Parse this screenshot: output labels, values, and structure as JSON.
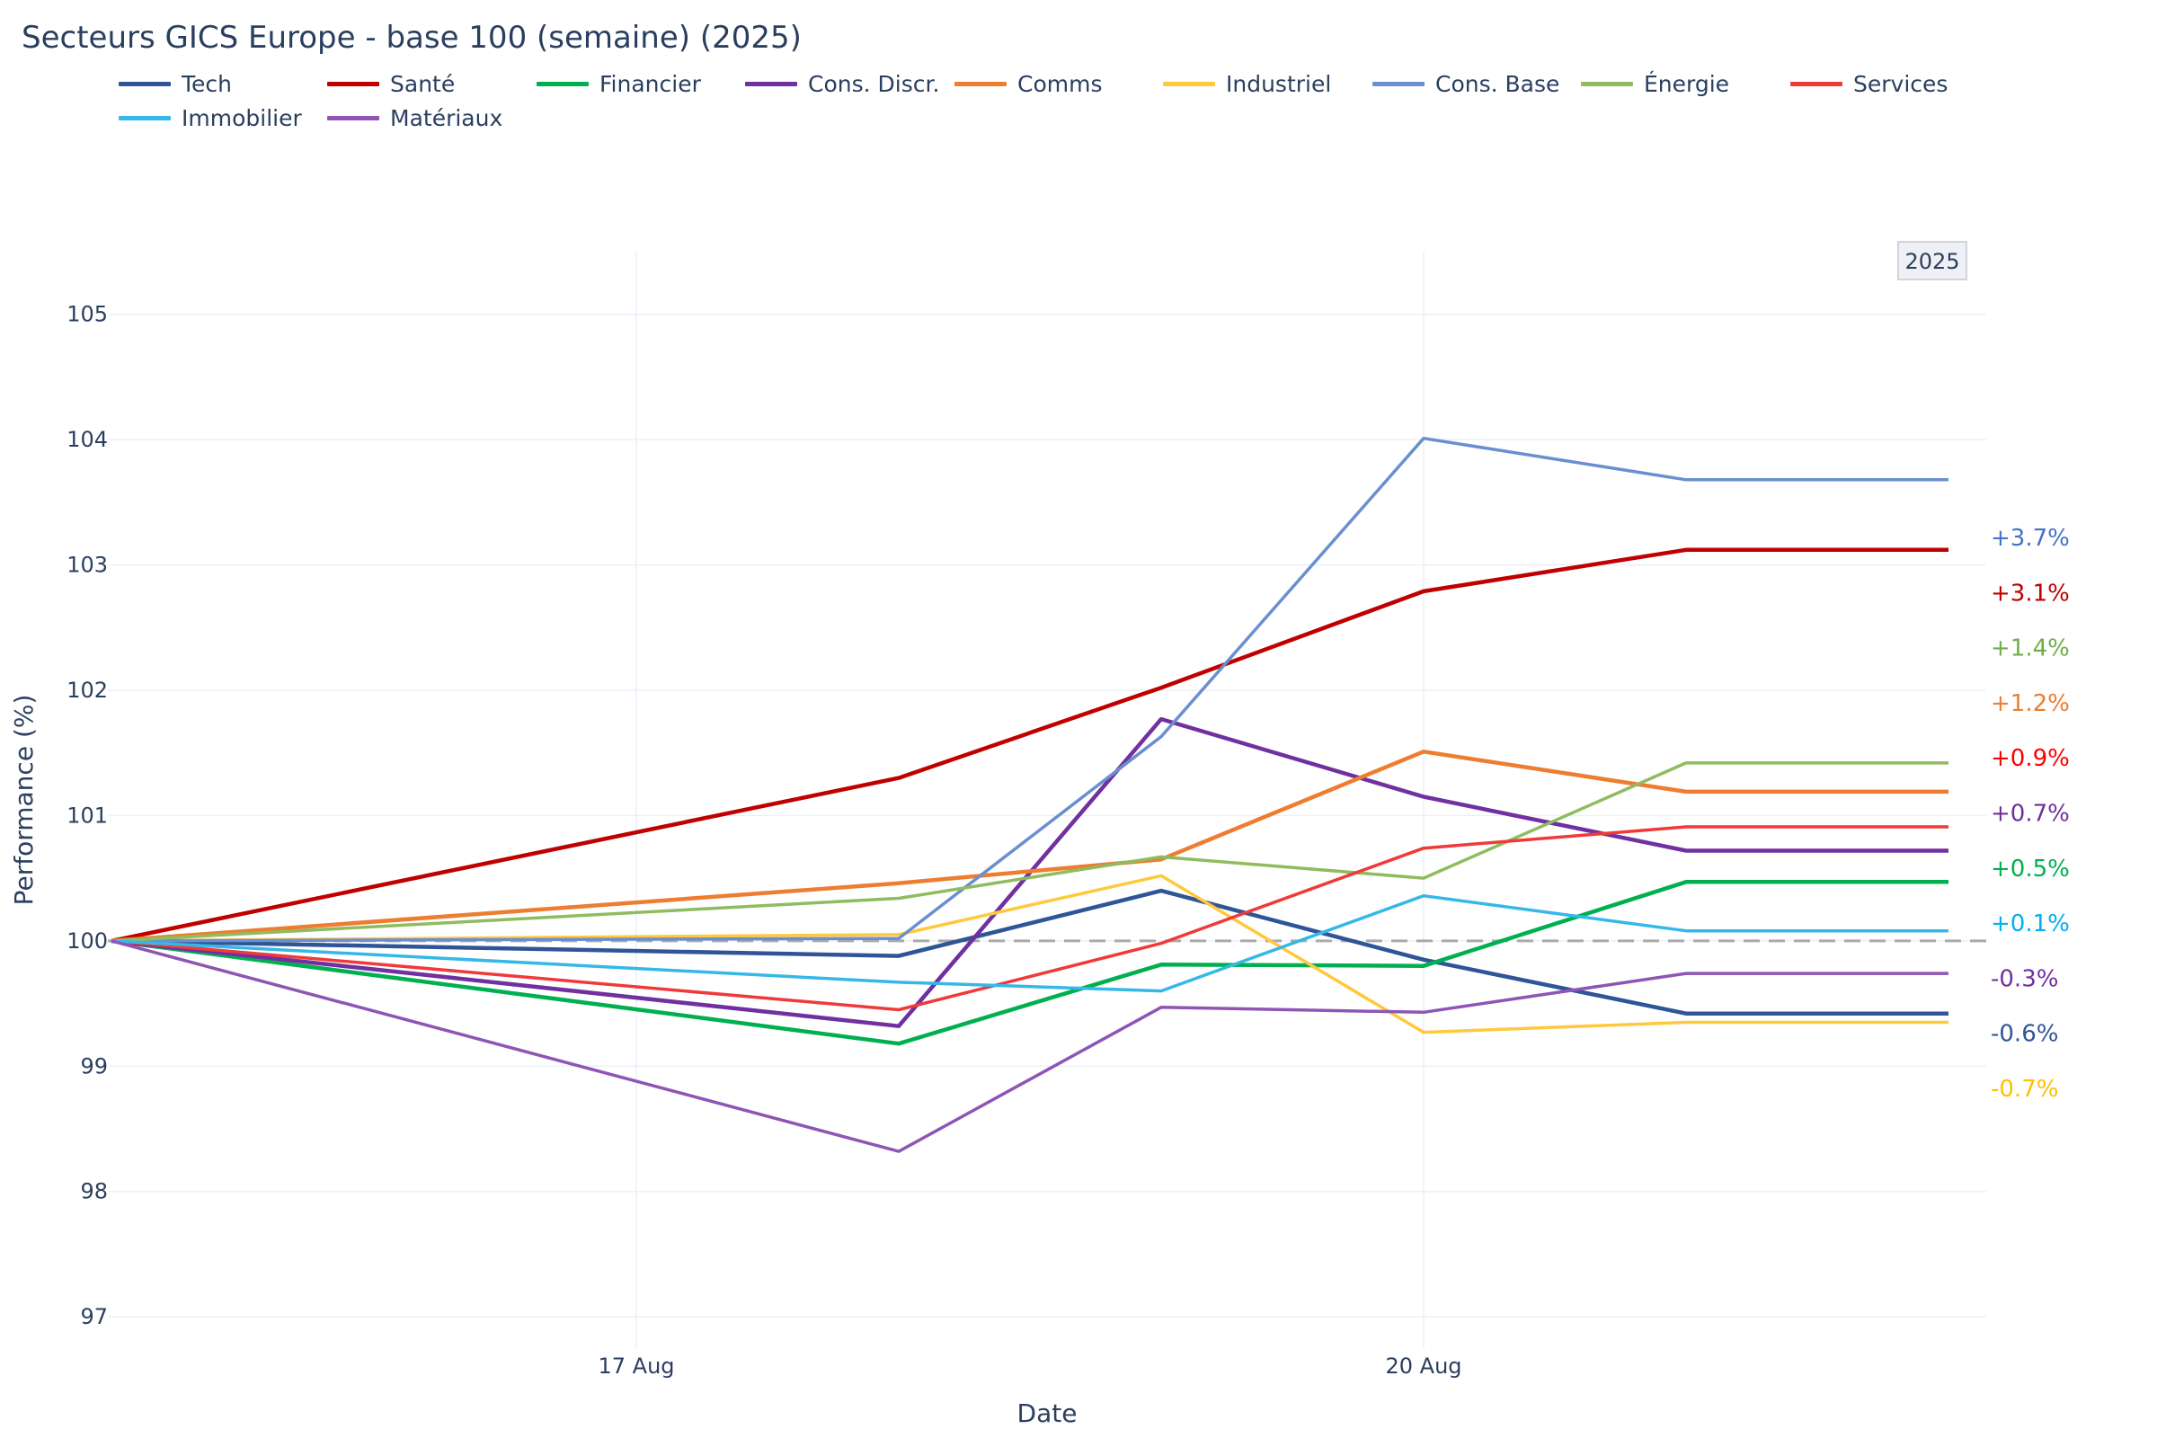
{
  "chart_data": {
    "type": "line",
    "title": "Secteurs GICS Europe - base 100 (semaine) (2025)",
    "xlabel": "Date",
    "ylabel": "Performance (%)",
    "x": [
      "2025-08-15",
      "2025-08-18",
      "2025-08-19",
      "2025-08-20",
      "2025-08-21",
      "2025-08-22"
    ],
    "x_tick_labels": [
      {
        "label": "17 Aug",
        "date": "2025-08-17"
      },
      {
        "label": "20 Aug",
        "date": "2025-08-20"
      }
    ],
    "ylim": [
      96.75,
      105.5
    ],
    "yticks": [
      97,
      98,
      99,
      100,
      101,
      102,
      103,
      104,
      105
    ],
    "reference_line": 100,
    "grid": true,
    "legend_position": "top",
    "annotation": "2025",
    "series": [
      {
        "name": "Tech",
        "color": "#2f5597",
        "values": [
          100,
          99.88,
          100.4,
          99.85,
          99.42,
          99.42
        ]
      },
      {
        "name": "Santé",
        "color": "#c00000",
        "values": [
          100,
          101.3,
          102.02,
          102.79,
          103.12,
          103.12
        ]
      },
      {
        "name": "Financier",
        "color": "#00b050",
        "values": [
          100,
          99.18,
          99.81,
          99.8,
          100.47,
          100.47
        ]
      },
      {
        "name": "Cons. Discr.",
        "color": "#7030a0",
        "values": [
          100,
          99.32,
          101.77,
          101.15,
          100.72,
          100.72
        ]
      },
      {
        "name": "Comms",
        "color": "#ed7d31",
        "values": [
          100,
          100.46,
          100.65,
          101.51,
          101.19,
          101.19
        ]
      },
      {
        "name": "Industriel",
        "color": "#ffc93c",
        "values": [
          100,
          100.05,
          100.52,
          99.27,
          99.35,
          99.35
        ]
      },
      {
        "name": "Cons. Base",
        "color": "#6a8fd0",
        "values": [
          100,
          100.02,
          101.63,
          104.01,
          103.68,
          103.68
        ]
      },
      {
        "name": "Énergie",
        "color": "#8fbc5f",
        "values": [
          100,
          100.34,
          100.67,
          100.5,
          101.42,
          101.42
        ]
      },
      {
        "name": "Services",
        "color": "#f03a3a",
        "values": [
          100,
          99.45,
          99.98,
          100.74,
          100.91,
          100.91
        ]
      },
      {
        "name": "Immobilier",
        "color": "#35b8e8",
        "values": [
          100,
          99.67,
          99.6,
          100.36,
          100.08,
          100.08
        ]
      },
      {
        "name": "Matériaux",
        "color": "#8e55b5",
        "values": [
          100,
          98.32,
          99.47,
          99.43,
          99.74,
          99.74
        ]
      }
    ],
    "end_labels": [
      {
        "text": "+3.7%",
        "color": "#4472c4"
      },
      {
        "text": "+3.1%",
        "color": "#c00000"
      },
      {
        "text": "+1.4%",
        "color": "#70ad47"
      },
      {
        "text": "+1.2%",
        "color": "#ed7d31"
      },
      {
        "text": "+0.9%",
        "color": "#ff0000"
      },
      {
        "text": "+0.7%",
        "color": "#7030a0"
      },
      {
        "text": "+0.5%",
        "color": "#00b050"
      },
      {
        "text": "+0.1%",
        "color": "#00b0f0"
      },
      {
        "text": "-0.3%",
        "color": "#7030a0"
      },
      {
        "text": "-0.6%",
        "color": "#2f5597"
      },
      {
        "text": "-0.7%",
        "color": "#ffc000"
      }
    ]
  }
}
